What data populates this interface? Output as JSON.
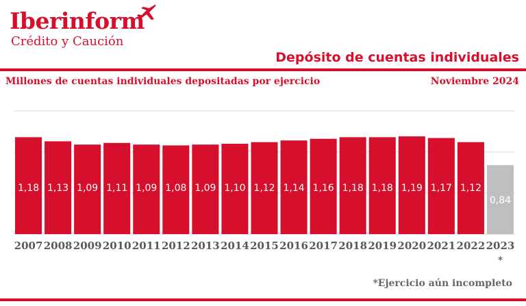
{
  "brand": {
    "name": "Iberinform",
    "tagline": "Crédito y Caución",
    "icon": "plane-icon",
    "color": "#d50f2c"
  },
  "header": {
    "title": "Depósito de cuentas individuales",
    "date": "Noviembre  2024"
  },
  "chart_data": {
    "type": "bar",
    "title": "",
    "subtitle": "Millones de cuentas individuales depositadas por ejercicio",
    "xlabel": "",
    "ylabel": "",
    "categories": [
      "2007",
      "2008",
      "2009",
      "2010",
      "2011",
      "2012",
      "2013",
      "2014",
      "2015",
      "2016",
      "2017",
      "2018",
      "2019",
      "2020",
      "2021",
      "2022",
      "2023"
    ],
    "values": [
      1.18,
      1.13,
      1.09,
      1.11,
      1.09,
      1.08,
      1.09,
      1.1,
      1.12,
      1.14,
      1.16,
      1.18,
      1.18,
      1.19,
      1.17,
      1.12,
      0.84
    ],
    "value_labels": [
      "1,18",
      "1,13",
      "1,09",
      "1,11",
      "1,09",
      "1,08",
      "1,09",
      "1,10",
      "1,12",
      "1,14",
      "1,16",
      "1,18",
      "1,18",
      "1,19",
      "1,17",
      "1,12",
      "0,84"
    ],
    "ylim": [
      0,
      1.5
    ],
    "grid": true,
    "incomplete_marker": {
      "category": "2023",
      "mark": "*"
    },
    "colors": {
      "bar": "#d50f2c",
      "incomplete_bar": "#bfbfbf",
      "value_label": "#ffffff",
      "tick_label": "#595959",
      "grid": "#d9d9d9"
    }
  },
  "footnote": "*Ejercicio aún incompleto"
}
